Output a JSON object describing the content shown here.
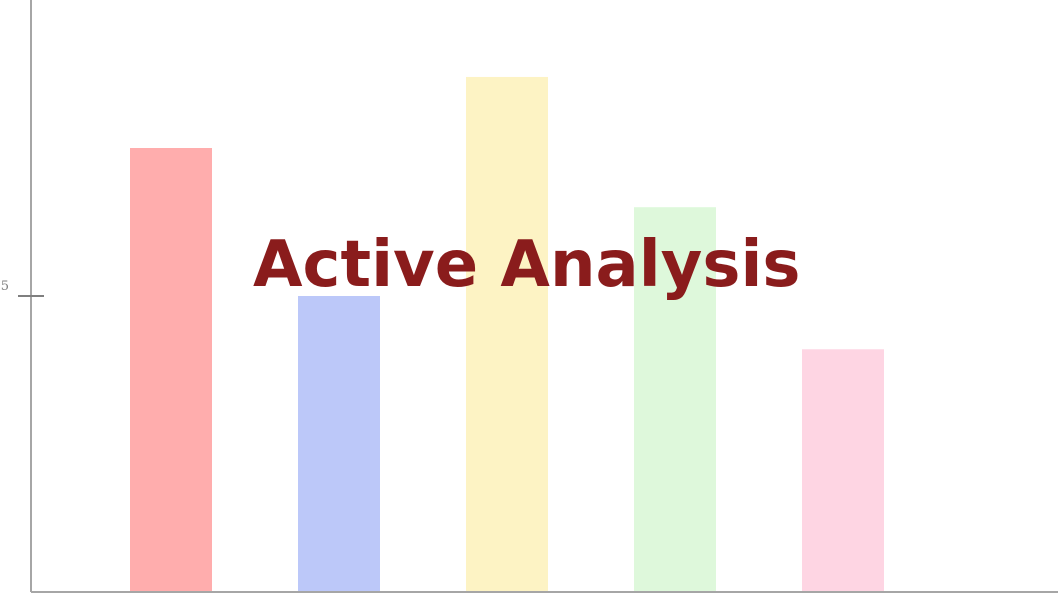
{
  "chart_data": {
    "type": "bar",
    "title": "Active Analysis",
    "xlabel": "",
    "ylabel": "",
    "categories": [
      "",
      "",
      "",
      "",
      ""
    ],
    "values": [
      7.5,
      5.0,
      8.7,
      6.5,
      4.1
    ],
    "ylim": [
      0,
      10
    ],
    "yticks": [
      5
    ],
    "ytick_labels": [
      "5"
    ],
    "colors": [
      "#ffadad",
      "#bcc8f9",
      "#fdf3c4",
      "#def8db",
      "#fed5e3"
    ],
    "grid": false,
    "legend": "none"
  },
  "colors": {
    "title": "#8a1c1c",
    "axis": "#a6a6a6"
  }
}
